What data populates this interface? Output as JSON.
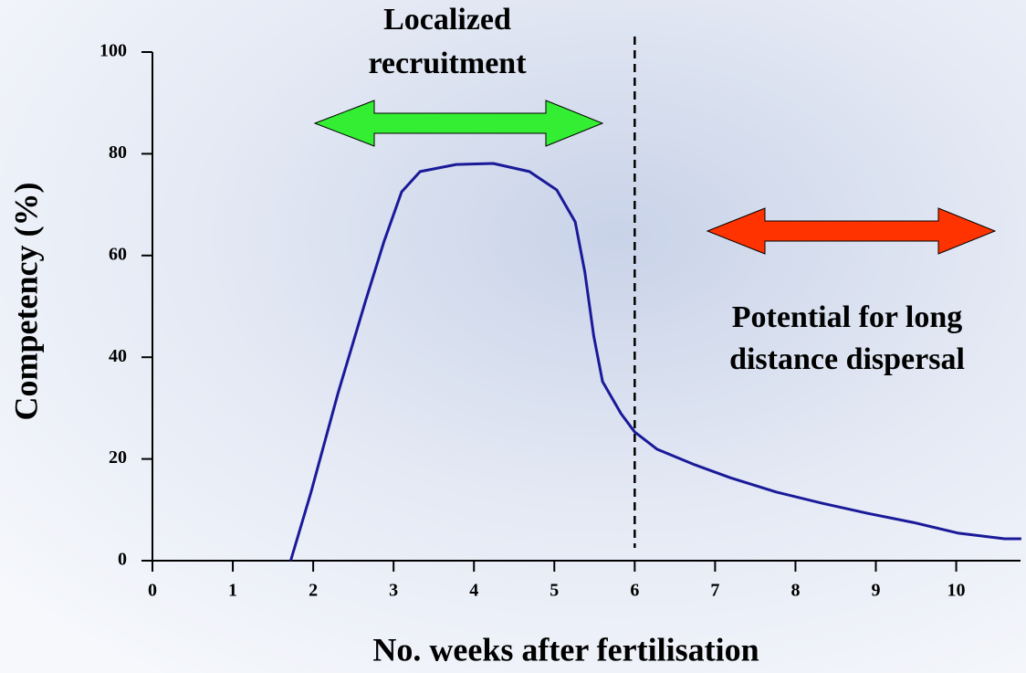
{
  "chart_data": {
    "type": "line",
    "x_label": "No. weeks after fertilisation",
    "y_label": "Competency (%)",
    "x": [
      1.72,
      1.97,
      2.31,
      2.65,
      2.88,
      3.1,
      3.33,
      3.78,
      4.24,
      4.69,
      5.03,
      5.26,
      5.38,
      5.49,
      5.6,
      5.83,
      6.0,
      6.28,
      6.74,
      7.19,
      7.76,
      8.33,
      8.9,
      9.47,
      10.03,
      10.6,
      10.81
    ],
    "series": [
      {
        "color": "#1a1a99",
        "values": [
          0,
          13.3,
          33.0,
          51.0,
          62.7,
          72.5,
          76.5,
          77.9,
          78.1,
          76.5,
          72.9,
          66.6,
          56.7,
          44.2,
          35.2,
          28.9,
          25.3,
          21.9,
          18.9,
          16.3,
          13.5,
          11.3,
          9.3,
          7.5,
          5.4,
          4.3,
          4.3
        ]
      }
    ],
    "xlim": [
      0,
      10.8
    ],
    "ylim": [
      0,
      100
    ],
    "xticks": [
      0,
      1,
      2,
      3,
      4,
      5,
      6,
      7,
      8,
      9,
      10
    ],
    "yticks": [
      0,
      20,
      40,
      60,
      80,
      100
    ],
    "vline": 6,
    "annotations": [
      "Localized",
      "recruitment",
      "Potential for long",
      "distance dispersal"
    ]
  }
}
